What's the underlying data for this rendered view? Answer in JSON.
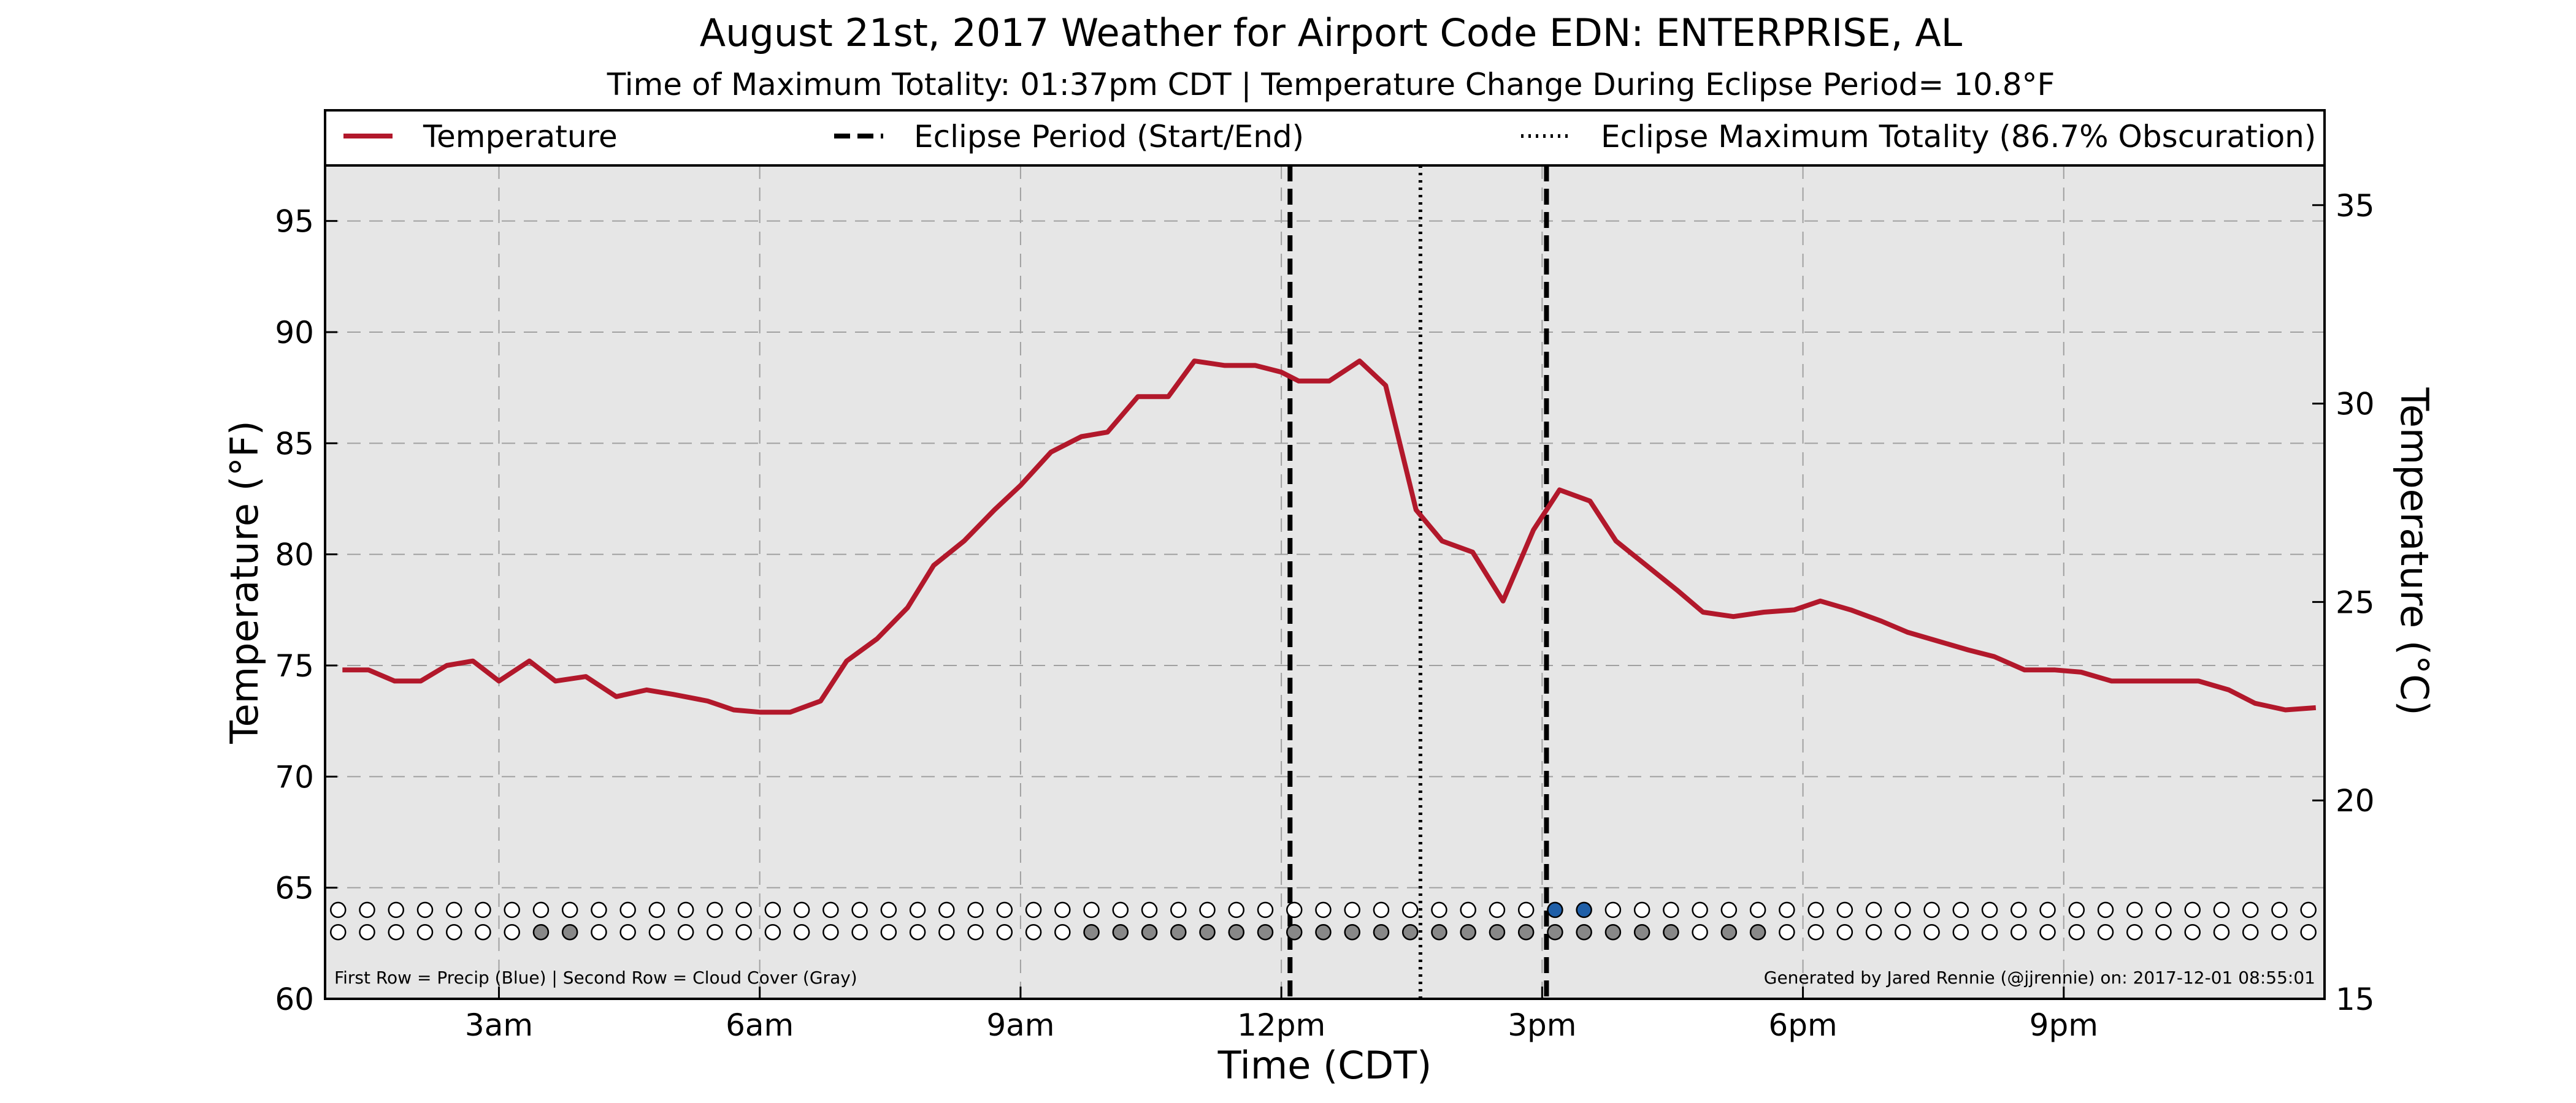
{
  "chart_data": {
    "type": "line",
    "title": "August 21st, 2017 Weather for Airport Code EDN: ENTERPRISE, AL",
    "subtitle": "Time of Maximum Totality: 01:37pm CDT | Temperature Change During Eclipse Period= 10.8°F",
    "xlabel": "Time (CDT)",
    "ylabel": "Temperature (°F)",
    "ylabel_right": "Temperature (°C)",
    "xlim": [
      1.0,
      24.0
    ],
    "ylim": [
      60,
      97.5
    ],
    "ylim_right": [
      15,
      36
    ],
    "x_ticks": [
      {
        "value": 3,
        "label": "3am"
      },
      {
        "value": 6,
        "label": "6am"
      },
      {
        "value": 9,
        "label": "9am"
      },
      {
        "value": 12,
        "label": "12pm"
      },
      {
        "value": 15,
        "label": "3pm"
      },
      {
        "value": 18,
        "label": "6pm"
      },
      {
        "value": 21,
        "label": "9pm"
      }
    ],
    "y_ticks": [
      60,
      65,
      70,
      75,
      80,
      85,
      90,
      95
    ],
    "y_ticks_right": [
      15,
      20,
      25,
      30,
      35
    ],
    "grid": true,
    "legend": {
      "placement": "top",
      "entries": [
        {
          "label": "Temperature",
          "style": "solid",
          "color": "#b2182b"
        },
        {
          "label": "Eclipse Period (Start/End)",
          "style": "dashed",
          "color": "#000000"
        },
        {
          "label": "Eclipse Maximum Totality (86.7% Obscuration)",
          "style": "dotted",
          "color": "#000000"
        }
      ]
    },
    "series": [
      {
        "name": "Temperature",
        "color": "#b2182b",
        "points": [
          [
            1.2,
            74.8
          ],
          [
            1.5,
            74.8
          ],
          [
            1.8,
            74.3
          ],
          [
            2.1,
            74.3
          ],
          [
            2.4,
            75.0
          ],
          [
            2.7,
            75.2
          ],
          [
            3.0,
            74.3
          ],
          [
            3.35,
            75.2
          ],
          [
            3.65,
            74.3
          ],
          [
            4.0,
            74.5
          ],
          [
            4.35,
            73.6
          ],
          [
            4.7,
            73.9
          ],
          [
            5.0,
            73.7
          ],
          [
            5.4,
            73.4
          ],
          [
            5.7,
            73.0
          ],
          [
            6.0,
            72.9
          ],
          [
            6.35,
            72.9
          ],
          [
            6.7,
            73.4
          ],
          [
            7.0,
            75.2
          ],
          [
            7.35,
            76.2
          ],
          [
            7.7,
            77.6
          ],
          [
            8.0,
            79.5
          ],
          [
            8.35,
            80.6
          ],
          [
            8.7,
            82.0
          ],
          [
            9.0,
            83.1
          ],
          [
            9.35,
            84.6
          ],
          [
            9.7,
            85.3
          ],
          [
            10.0,
            85.5
          ],
          [
            10.35,
            87.1
          ],
          [
            10.7,
            87.1
          ],
          [
            11.0,
            88.7
          ],
          [
            11.35,
            88.5
          ],
          [
            11.7,
            88.5
          ],
          [
            12.0,
            88.2
          ],
          [
            12.2,
            87.8
          ],
          [
            12.55,
            87.8
          ],
          [
            12.9,
            88.7
          ],
          [
            13.2,
            87.6
          ],
          [
            13.55,
            82.0
          ],
          [
            13.85,
            80.6
          ],
          [
            14.2,
            80.1
          ],
          [
            14.55,
            77.9
          ],
          [
            14.9,
            81.1
          ],
          [
            15.2,
            82.9
          ],
          [
            15.55,
            82.4
          ],
          [
            15.85,
            80.6
          ],
          [
            16.2,
            79.5
          ],
          [
            16.55,
            78.4
          ],
          [
            16.85,
            77.4
          ],
          [
            17.2,
            77.2
          ],
          [
            17.55,
            77.4
          ],
          [
            17.9,
            77.5
          ],
          [
            18.2,
            77.9
          ],
          [
            18.55,
            77.5
          ],
          [
            18.9,
            77.0
          ],
          [
            19.2,
            76.5
          ],
          [
            19.55,
            76.1
          ],
          [
            19.9,
            75.7
          ],
          [
            20.2,
            75.4
          ],
          [
            20.55,
            74.8
          ],
          [
            20.9,
            74.8
          ],
          [
            21.2,
            74.7
          ],
          [
            21.55,
            74.3
          ],
          [
            21.9,
            74.3
          ],
          [
            22.2,
            74.3
          ],
          [
            22.55,
            74.3
          ],
          [
            22.9,
            73.9
          ],
          [
            23.2,
            73.3
          ],
          [
            23.55,
            73.0
          ],
          [
            23.9,
            73.1
          ]
        ]
      }
    ],
    "eclipse": {
      "start": 12.1,
      "max": 13.6,
      "end": 15.05
    },
    "markers": {
      "x_start": 1.15,
      "x_step": 0.3333,
      "count": 69,
      "precip_row_y": 64.0,
      "cloud_row_y": 63.0,
      "precip_blue_indices": [
        42,
        43
      ],
      "cloud_gray_indices": [
        7,
        8,
        26,
        27,
        28,
        29,
        30,
        31,
        32,
        33,
        34,
        35,
        36,
        37,
        38,
        39,
        40,
        41,
        42,
        43,
        44,
        45,
        46,
        48,
        49
      ],
      "precip_color": "#1f5fa8",
      "cloud_color": "#888888"
    },
    "footnote_left": "First Row = Precip (Blue) | Second Row = Cloud Cover (Gray)",
    "footnote_right": "Generated by Jared Rennie (@jjrennie) on: 2017-12-01 08:55:01",
    "colors": {
      "plot_background": "#e6e6e6",
      "line": "#b2182b"
    }
  }
}
